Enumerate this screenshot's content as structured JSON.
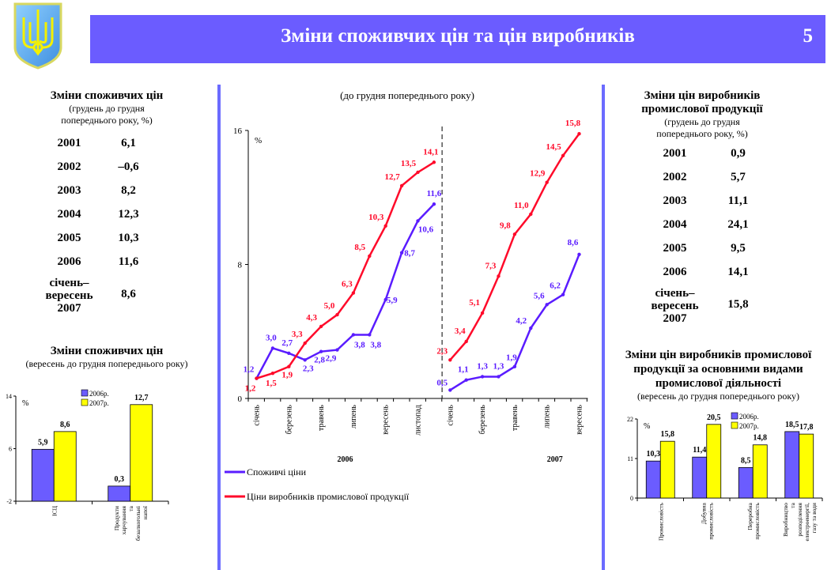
{
  "header": {
    "title": "Зміни споживчих цін та цін виробників",
    "page_number": "5",
    "emblem": "ukraine-coat-of-arms-icon"
  },
  "colors": {
    "banner": "#6b5cff",
    "cpi": "#5a1cff",
    "ppi": "#ff0a2a",
    "bar2006": "#6b5cff",
    "bar2007": "#ffff00"
  },
  "cpi_table": {
    "title": "Зміни споживчих цін",
    "subtitle_1": "(грудень до грудня",
    "subtitle_2": "попереднього року, %)",
    "rows": [
      {
        "year": "2001",
        "value": "6,1"
      },
      {
        "year": "2002",
        "value": "–0,6"
      },
      {
        "year": "2003",
        "value": "8,2"
      },
      {
        "year": "2004",
        "value": "12,3"
      },
      {
        "year": "2005",
        "value": "10,3"
      },
      {
        "year": "2006",
        "value": "11,6"
      }
    ],
    "last_row": {
      "label_1": "січень–",
      "label_2": "вересень",
      "label_3": "2007",
      "value": "8,6"
    }
  },
  "ppi_table": {
    "title_1": "Зміни цін виробників",
    "title_2": "промислової продукції",
    "subtitle_1": "(грудень до грудня",
    "subtitle_2": "попереднього року, %)",
    "rows": [
      {
        "year": "2001",
        "value": "0,9"
      },
      {
        "year": "2002",
        "value": "5,7"
      },
      {
        "year": "2003",
        "value": "11,1"
      },
      {
        "year": "2004",
        "value": "24,1"
      },
      {
        "year": "2005",
        "value": "9,5"
      },
      {
        "year": "2006",
        "value": "14,1"
      }
    ],
    "last_row": {
      "label_1": "січень–",
      "label_2": "вересень",
      "label_3": "2007",
      "value": "15,8"
    }
  },
  "chart_data": [
    {
      "type": "line",
      "title": "(до грудня попереднього року)",
      "ylabel": "%",
      "ylim": [
        0,
        16
      ],
      "yticks": [
        "0",
        "8",
        "16"
      ],
      "ytick_values": [
        0,
        8,
        16
      ],
      "xtick_labels": [
        "січень",
        "березень",
        "травень",
        "липень",
        "вересень",
        "листопад",
        "січень",
        "березень",
        "травень",
        "липень",
        "вересень"
      ],
      "year_labels": [
        "2006",
        "2007"
      ],
      "series": [
        {
          "name": "Споживчі ціни",
          "labels2006": [
            "1,2",
            "3,0",
            "2,7",
            "2,3",
            "2,8",
            "2,9",
            "3,8",
            "3,8",
            "5,9",
            "8,7",
            "10,6",
            "11,6"
          ],
          "values2006": [
            1.2,
            3.0,
            2.7,
            2.3,
            2.8,
            2.9,
            3.8,
            3.8,
            5.9,
            8.7,
            10.6,
            11.6
          ],
          "labels2007": [
            "0,5",
            "1,1",
            "1,3",
            "1,3",
            "1,9",
            "4,2",
            "5,6",
            "6,2",
            "8,6"
          ],
          "values2007": [
            0.5,
            1.1,
            1.3,
            1.3,
            1.9,
            4.2,
            5.6,
            6.2,
            8.6
          ]
        },
        {
          "name": "Ціни виробників промислової продукції",
          "labels2006": [
            "1,2",
            "1,5",
            "1,9",
            "3,3",
            "4,3",
            "5,0",
            "6,3",
            "8,5",
            "10,3",
            "12,7",
            "13,5",
            "14,1"
          ],
          "values2006": [
            1.2,
            1.5,
            1.9,
            3.3,
            4.3,
            5.0,
            6.3,
            8.5,
            10.3,
            12.7,
            13.5,
            14.1
          ],
          "labels2007": [
            "2,3",
            "3,4",
            "5,1",
            "7,3",
            "9,8",
            "11,0",
            "12,9",
            "14,5",
            "15,8"
          ],
          "values2007": [
            2.3,
            3.4,
            5.1,
            7.3,
            9.8,
            11.0,
            12.9,
            14.5,
            15.8
          ]
        }
      ]
    },
    {
      "type": "bar",
      "title": "Зміни споживчих цін",
      "subtitle": "(вересень до грудня попереднього року)",
      "ylabel": "%",
      "ylim": [
        -2,
        14
      ],
      "yticks": [
        "-2",
        "6",
        "14"
      ],
      "ytick_values": [
        -2,
        6,
        14
      ],
      "categories": [
        "ІСЦ",
        "Продукти харчування та безалкогольні напої"
      ],
      "series": [
        {
          "name": "2006р.",
          "values": [
            5.9,
            0.3
          ],
          "labels": [
            "5,9",
            "0,3"
          ]
        },
        {
          "name": "2007р.",
          "values": [
            8.6,
            12.7
          ],
          "labels": [
            "8,6",
            "12,7"
          ]
        }
      ]
    },
    {
      "type": "bar",
      "title_1": "Зміни цін виробників промислової",
      "title_2": "продукції за основними видами",
      "title_3": "промислової діяльності",
      "subtitle": "(вересень до грудня попереднього року)",
      "ylabel": "%",
      "ylim": [
        0,
        22
      ],
      "yticks": [
        "0",
        "11",
        "22"
      ],
      "ytick_values": [
        0,
        11,
        22
      ],
      "categories": [
        "Промисловість",
        "Добувна промисловість",
        "Переробна промисловість",
        "Виробництво та розподілення електроенергії, газу та води"
      ],
      "series": [
        {
          "name": "2006р.",
          "values": [
            10.3,
            11.4,
            8.5,
            18.5
          ],
          "labels": [
            "10,3",
            "11,4",
            "8,5",
            "18,5"
          ]
        },
        {
          "name": "2007р.",
          "values": [
            15.8,
            20.5,
            14.8,
            17.8
          ],
          "labels": [
            "15,8",
            "20,5",
            "14,8",
            "17,8"
          ]
        }
      ]
    }
  ]
}
